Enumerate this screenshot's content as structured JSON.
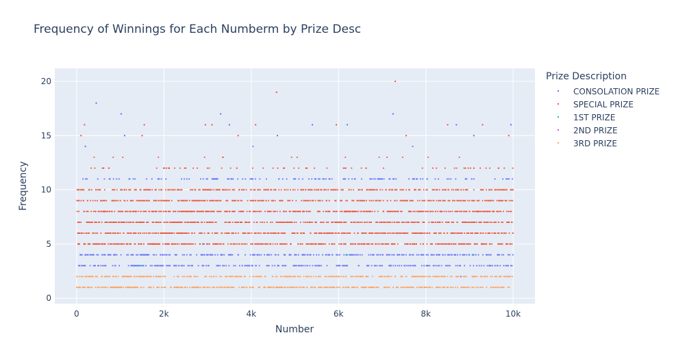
{
  "chart_data": {
    "type": "scatter",
    "title": "Frequency of Winnings for Each Numberm by Prize Desc",
    "xlabel": "Number",
    "ylabel": "Frequency",
    "xlim": [
      -500,
      10500
    ],
    "ylim": [
      -0.5,
      21.2
    ],
    "x_ticks": [
      {
        "value": 0,
        "label": "0"
      },
      {
        "value": 2000,
        "label": "2k"
      },
      {
        "value": 4000,
        "label": "4k"
      },
      {
        "value": 6000,
        "label": "6k"
      },
      {
        "value": 8000,
        "label": "8k"
      },
      {
        "value": 10000,
        "label": "10k"
      }
    ],
    "y_ticks": [
      {
        "value": 0,
        "label": "0"
      },
      {
        "value": 5,
        "label": "5"
      },
      {
        "value": 10,
        "label": "10"
      },
      {
        "value": 15,
        "label": "15"
      },
      {
        "value": 20,
        "label": "20"
      }
    ],
    "grid": true,
    "legend_title": "Prize Description",
    "legend_position": "top-right",
    "series": [
      {
        "name": "CONSOLATION PRIZE",
        "color": "#636efa",
        "points": [
          [
            450,
            18
          ],
          [
            1020,
            17
          ],
          [
            7250,
            17
          ],
          [
            9950,
            16
          ],
          [
            4600,
            15
          ],
          [
            1100,
            15
          ],
          [
            6200,
            16
          ],
          [
            3300,
            17
          ],
          [
            3500,
            16
          ],
          [
            9100,
            15
          ],
          [
            200,
            14
          ],
          [
            8700,
            16
          ],
          [
            5400,
            16
          ]
        ]
      },
      {
        "name": "SPECIAL PRIZE",
        "color": "#ef553b",
        "points": [
          [
            7300,
            20
          ],
          [
            4580,
            19
          ],
          [
            180,
            16
          ],
          [
            1550,
            16
          ],
          [
            2950,
            16
          ],
          [
            3100,
            16
          ],
          [
            4100,
            16
          ],
          [
            5950,
            16
          ],
          [
            8500,
            16
          ],
          [
            9300,
            16
          ],
          [
            100,
            15
          ],
          [
            1500,
            15
          ],
          [
            3700,
            15
          ],
          [
            7550,
            15
          ],
          [
            9900,
            15
          ]
        ]
      },
      {
        "name": "1ST PRIZE",
        "color": "#00cc96",
        "points": [
          [
            2900,
            5
          ],
          [
            6200,
            4
          ],
          [
            9100,
            4
          ],
          [
            1500,
            3
          ]
        ]
      },
      {
        "name": "2ND PRIZE",
        "color": "#ab63fa",
        "points": [
          [
            3000,
            5
          ],
          [
            7100,
            4
          ],
          [
            8800,
            2
          ]
        ]
      },
      {
        "name": "3RD PRIZE",
        "color": "#ffa15a",
        "points": [
          [
            4200,
            2
          ],
          [
            6500,
            2
          ],
          [
            8000,
            2
          ],
          [
            2800,
            1
          ]
        ]
      }
    ],
    "dense_levels": [
      {
        "frequency": 1,
        "color": "#ffa15a",
        "density": 1.0
      },
      {
        "frequency": 2,
        "color": "#ffa15a",
        "density": 0.9
      },
      {
        "frequency": 3,
        "color": "#636efa",
        "density": 0.75
      },
      {
        "frequency": 4,
        "color": "#636efa",
        "density": 0.8
      },
      {
        "frequency": 5,
        "color": "#ef553b",
        "density": 1.0
      },
      {
        "frequency": 6,
        "color": "#ef553b",
        "density": 1.0
      },
      {
        "frequency": 7,
        "color": "#ef553b",
        "density": 1.0
      },
      {
        "frequency": 8,
        "color": "#ef553b",
        "density": 1.0
      },
      {
        "frequency": 9,
        "color": "#ef553b",
        "density": 0.9
      },
      {
        "frequency": 10,
        "color": "#ef553b",
        "density": 0.85
      },
      {
        "frequency": 11,
        "color": "#636efa",
        "density": 0.55
      },
      {
        "frequency": 12,
        "color": "#ef553b",
        "density": 0.35
      },
      {
        "frequency": 13,
        "color": "#ef553b",
        "density": 0.15
      },
      {
        "frequency": 14,
        "color": "#636efa",
        "density": 0.06
      }
    ]
  }
}
